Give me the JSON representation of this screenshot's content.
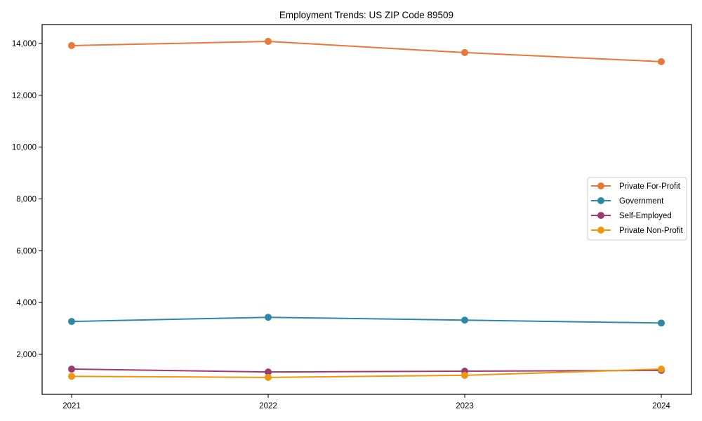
{
  "chart_data": {
    "type": "line",
    "title": "Employment Trends: US ZIP Code 89509",
    "xlabel": "",
    "ylabel": "",
    "x": [
      "2021",
      "2022",
      "2023",
      "2024"
    ],
    "ylim": [
      500,
      14700
    ],
    "yticks": [
      2000,
      4000,
      6000,
      8000,
      10000,
      12000,
      14000
    ],
    "ytick_labels": [
      "2,000",
      "4,000",
      "6,000",
      "8,000",
      "10,000",
      "12,000",
      "14,000"
    ],
    "grid": false,
    "legend_position": "center right",
    "series": [
      {
        "name": "Private For-Profit",
        "color": "#E8773A",
        "values": [
          13920,
          14080,
          13650,
          13300
        ]
      },
      {
        "name": "Government",
        "color": "#2E86A8",
        "values": [
          3270,
          3430,
          3320,
          3210
        ]
      },
      {
        "name": "Self-Employed",
        "color": "#9B3B72",
        "values": [
          1430,
          1320,
          1350,
          1380
        ]
      },
      {
        "name": "Private Non-Profit",
        "color": "#F0960E",
        "values": [
          1150,
          1110,
          1190,
          1430
        ]
      }
    ]
  }
}
